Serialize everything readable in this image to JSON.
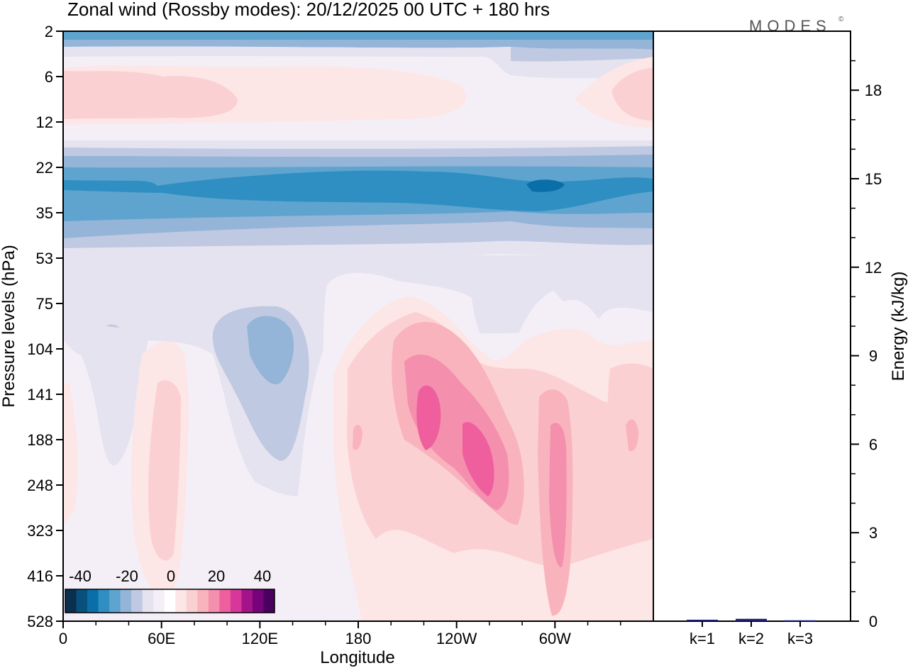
{
  "chart_data": {
    "type": "heatmap",
    "title": "Zonal wind (Rossby modes):  20/12/2025  00 UTC  + 180 hrs",
    "logo": "MODES",
    "logo_mark": "©",
    "xlabel": "Longitude",
    "ylabel": "Pressure levels (hPa)",
    "x_ticks": [
      "0",
      "60E",
      "120E",
      "180",
      "120W",
      "60W"
    ],
    "y_ticks": [
      "2",
      "6",
      "12",
      "22",
      "35",
      "53",
      "75",
      "104",
      "141",
      "188",
      "248",
      "323",
      "416",
      "528"
    ],
    "colorbar": {
      "tick_labels": [
        "-40",
        "-20",
        "0",
        "20",
        "40"
      ],
      "colors": [
        "#0a2f4f",
        "#08507e",
        "#0a6ea8",
        "#2f8fc2",
        "#5ea4ce",
        "#94b4d8",
        "#c0c9e2",
        "#e5e3ef",
        "#f4eff7",
        "#ffffff",
        "#fde6e6",
        "#fbd0d3",
        "#f9b3bd",
        "#f48fae",
        "#ef5f9e",
        "#d7379a",
        "#a5138a",
        "#77037b",
        "#4a005f"
      ]
    },
    "fields": [
      {
        "level": "2",
        "wind": -20
      },
      {
        "level": "6",
        "wind": 5
      },
      {
        "level": "12",
        "wind": 0
      },
      {
        "level": "22",
        "wind": -25
      },
      {
        "level": "35",
        "wind": -22
      },
      {
        "level": "53",
        "wind": -10
      },
      {
        "level": "104",
        "wind": -15
      },
      {
        "level": "141",
        "wind": 30
      }
    ],
    "energy": {
      "ylabel": "Energy (kJ/kg)",
      "ylim": [
        0,
        20
      ],
      "y_ticks": [
        "0",
        "3",
        "6",
        "9",
        "12",
        "15",
        "18"
      ],
      "y_tick_values": [
        0,
        3,
        6,
        9,
        12,
        15,
        18
      ],
      "categories": [
        "k=1",
        "k=2",
        "k=3"
      ],
      "values": [
        0.05,
        0.08,
        0.03
      ],
      "bar_color": "#1a1a6e"
    }
  }
}
